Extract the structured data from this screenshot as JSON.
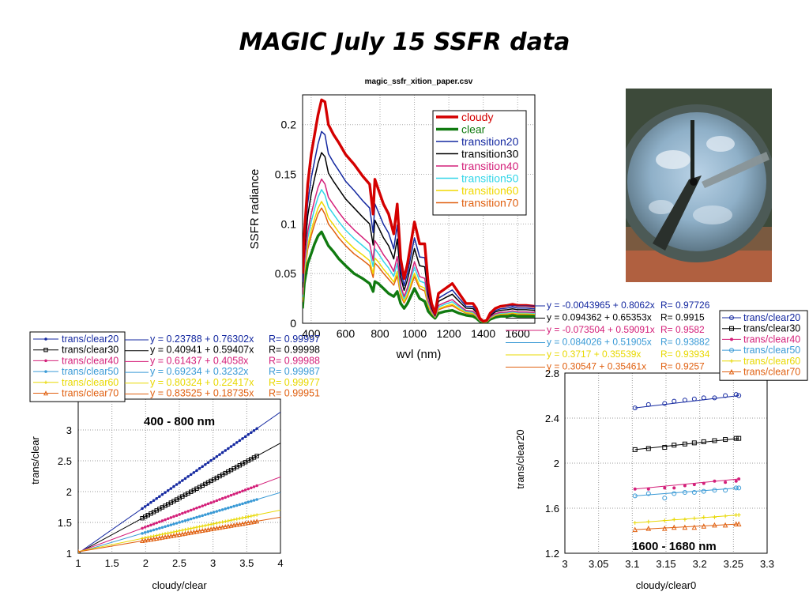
{
  "slide_title": "MAGIC July 15 SSFR data",
  "photo_alt": "all-sky camera image",
  "chart_data": [
    {
      "type": "line",
      "title": "magic_ssfr_xition_paper.csv",
      "xlabel": "wvl (nm)",
      "ylabel": "SSFR radiance",
      "xlim": [
        350,
        1700
      ],
      "ylim": [
        0,
        0.23
      ],
      "xticks": [
        400,
        600,
        800,
        1000,
        1200,
        1400,
        1600
      ],
      "yticks": [
        0,
        0.05,
        0.1,
        0.15,
        0.2
      ],
      "grid": true,
      "legend": "top-right",
      "x": [
        350,
        360,
        380,
        400,
        420,
        440,
        460,
        480,
        500,
        530,
        560,
        600,
        650,
        700,
        740,
        760,
        770,
        790,
        820,
        850,
        880,
        900,
        920,
        940,
        960,
        1000,
        1030,
        1060,
        1080,
        1100,
        1120,
        1140,
        1180,
        1220,
        1260,
        1300,
        1340,
        1360,
        1380,
        1400,
        1420,
        1440,
        1470,
        1500,
        1540,
        1570,
        1600,
        1650,
        1700
      ],
      "base_curve": [
        0.05,
        0.09,
        0.14,
        0.17,
        0.19,
        0.21,
        0.225,
        0.223,
        0.2,
        0.19,
        0.182,
        0.17,
        0.16,
        0.148,
        0.14,
        0.11,
        0.145,
        0.135,
        0.12,
        0.11,
        0.09,
        0.12,
        0.065,
        0.045,
        0.06,
        0.102,
        0.08,
        0.08,
        0.04,
        0.02,
        0.01,
        0.03,
        0.035,
        0.04,
        0.03,
        0.02,
        0.02,
        0.015,
        0.005,
        0.002,
        0.003,
        0.01,
        0.015,
        0.017,
        0.018,
        0.019,
        0.018,
        0.018,
        0.017
      ],
      "clear_curve": [
        0.015,
        0.04,
        0.06,
        0.07,
        0.08,
        0.088,
        0.092,
        0.085,
        0.078,
        0.072,
        0.065,
        0.058,
        0.05,
        0.045,
        0.04,
        0.032,
        0.042,
        0.04,
        0.035,
        0.03,
        0.027,
        0.032,
        0.02,
        0.015,
        0.02,
        0.035,
        0.025,
        0.022,
        0.012,
        0.008,
        0.005,
        0.01,
        0.012,
        0.013,
        0.01,
        0.008,
        0.007,
        0.005,
        0.002,
        0.001,
        0.001,
        0.004,
        0.006,
        0.007,
        0.007,
        0.008,
        0.007,
        0.007,
        0.007
      ],
      "series": [
        {
          "name": "cloudy",
          "color": "#d40000",
          "weight": 1.0,
          "width": 3.4
        },
        {
          "name": "clear",
          "color": "#107a10",
          "weight": 0.0,
          "width": 3.4
        },
        {
          "name": "transition20",
          "color": "#1428a0",
          "weight": 0.76,
          "width": 1.5
        },
        {
          "name": "transition30",
          "color": "#000000",
          "weight": 0.6,
          "width": 1.5
        },
        {
          "name": "transition40",
          "color": "#d4207a",
          "weight": 0.4,
          "width": 1.5
        },
        {
          "name": "transition50",
          "color": "#33d6e8",
          "weight": 0.32,
          "width": 1.5
        },
        {
          "name": "transition60",
          "color": "#f0d800",
          "weight": 0.23,
          "width": 1.5
        },
        {
          "name": "transition70",
          "color": "#e06010",
          "weight": 0.18,
          "width": 1.5
        }
      ]
    },
    {
      "type": "line",
      "annotation": "400 - 800 nm",
      "xlabel": "cloudy/clear",
      "ylabel": "trans/clear",
      "xlim": [
        1,
        4
      ],
      "ylim": [
        1,
        3.5
      ],
      "xticks": [
        "1",
        "1.5",
        "2",
        "2.5",
        "3",
        "3.5",
        "4"
      ],
      "yticks": [
        "1",
        "1.5",
        "2",
        "2.5",
        "3"
      ],
      "grid": true,
      "legend": "top-left",
      "series": [
        {
          "name": "trans/clear20",
          "color": "#1428a0",
          "marker": "dot",
          "intercept": 0.23788,
          "slope": 0.76302,
          "fit_text": "y = 0.23788 + 0.76302x",
          "r_text": "R= 0.99997",
          "x_range": [
            1.95,
            3.65
          ]
        },
        {
          "name": "trans/clear30",
          "color": "#000000",
          "marker": "square",
          "intercept": 0.40941,
          "slope": 0.59407,
          "fit_text": "y = 0.40941 + 0.59407x",
          "r_text": "R= 0.99998",
          "x_range": [
            1.95,
            3.65
          ]
        },
        {
          "name": "trans/clear40",
          "color": "#d4207a",
          "marker": "dot",
          "intercept": 0.61437,
          "slope": 0.4058,
          "fit_text": "y = 0.61437 + 0.4058x",
          "r_text": "R= 0.99988",
          "x_range": [
            1.95,
            3.65
          ]
        },
        {
          "name": "trans/clear50",
          "color": "#3a9ad6",
          "marker": "dot",
          "intercept": 0.69234,
          "slope": 0.3232,
          "fit_text": "y = 0.69234 + 0.3232x",
          "r_text": "R= 0.99987",
          "x_range": [
            1.95,
            3.65
          ]
        },
        {
          "name": "trans/clear60",
          "color": "#e8d800",
          "marker": "plus",
          "intercept": 0.80324,
          "slope": 0.22417,
          "fit_text": "y = 0.80324 + 0.22417x",
          "r_text": "R= 0.99977",
          "x_range": [
            1.95,
            3.65
          ]
        },
        {
          "name": "trans/clear70",
          "color": "#e06010",
          "marker": "triangle",
          "intercept": 0.83525,
          "slope": 0.18735,
          "fit_text": "y = 0.83525 + 0.18735x",
          "r_text": "R= 0.99951",
          "x_range": [
            1.95,
            3.65
          ]
        }
      ]
    },
    {
      "type": "scatter",
      "annotation": "1600 - 1680 nm",
      "xlabel": "cloudy/clear0",
      "ylabel": "trans/clear20",
      "xlim": [
        3,
        3.3
      ],
      "ylim": [
        1.2,
        2.8
      ],
      "xticks": [
        "3",
        "3.05",
        "3.1",
        "3.15",
        "3.2",
        "3.25",
        "3.3"
      ],
      "yticks": [
        "1.2",
        "1.6",
        "2",
        "2.4",
        "2.8"
      ],
      "grid": true,
      "legend": "top-right",
      "x": [
        3.104,
        3.124,
        3.148,
        3.162,
        3.178,
        3.192,
        3.206,
        3.222,
        3.238,
        3.254,
        3.258
      ],
      "series": [
        {
          "name": "trans/clear20",
          "color": "#1428a0",
          "marker": "circle",
          "intercept": -0.0043965,
          "slope": 0.8062,
          "fit_text": "y = -0.0043965 + 0.8062x",
          "r_text": "R= 0.97726",
          "y": [
            2.49,
            2.52,
            2.53,
            2.55,
            2.56,
            2.57,
            2.58,
            2.58,
            2.6,
            2.61,
            2.6
          ]
        },
        {
          "name": "trans/clear30",
          "color": "#000000",
          "marker": "square",
          "intercept": 0.094362,
          "slope": 0.65353,
          "fit_text": "y = 0.094362 + 0.65353x",
          "r_text": "R= 0.9915",
          "y": [
            2.12,
            2.13,
            2.14,
            2.16,
            2.17,
            2.18,
            2.19,
            2.2,
            2.21,
            2.22,
            2.22
          ]
        },
        {
          "name": "trans/clear40",
          "color": "#d4207a",
          "marker": "dot",
          "intercept": -0.073504,
          "slope": 0.59091,
          "fit_text": "y = -0.073504 + 0.59091x",
          "r_text": "R= 0.9582",
          "y": [
            1.77,
            1.77,
            1.78,
            1.78,
            1.8,
            1.81,
            1.82,
            1.84,
            1.83,
            1.84,
            1.86
          ]
        },
        {
          "name": "trans/clear50",
          "color": "#3a9ad6",
          "marker": "circle",
          "intercept": 0.084026,
          "slope": 0.51905,
          "fit_text": "y = 0.084026 + 0.51905x",
          "r_text": "R= 0.93882",
          "y": [
            1.71,
            1.73,
            1.69,
            1.73,
            1.74,
            1.74,
            1.75,
            1.76,
            1.76,
            1.78,
            1.78
          ]
        },
        {
          "name": "trans/clear60",
          "color": "#e8d800",
          "marker": "plus",
          "intercept": 0.3717,
          "slope": 0.35539,
          "fit_text": "y = 0.3717 + 0.35539x",
          "r_text": "R= 0.93934",
          "y": [
            1.47,
            1.48,
            1.49,
            1.5,
            1.5,
            1.51,
            1.52,
            1.52,
            1.53,
            1.54,
            1.54
          ]
        },
        {
          "name": "trans/clear70",
          "color": "#e06010",
          "marker": "triangle",
          "intercept": 0.30547,
          "slope": 0.35461,
          "fit_text": "y = 0.30547 + 0.35461x",
          "r_text": "R= 0.9257",
          "y": [
            1.41,
            1.42,
            1.42,
            1.43,
            1.43,
            1.43,
            1.44,
            1.45,
            1.45,
            1.46,
            1.46
          ]
        }
      ]
    }
  ]
}
